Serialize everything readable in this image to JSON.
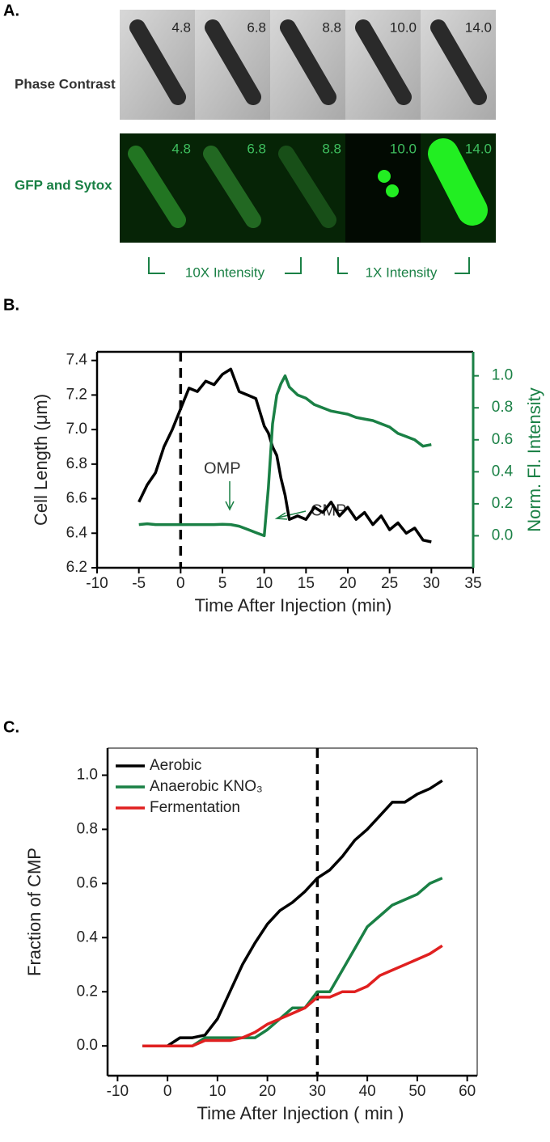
{
  "panel_a": {
    "label": "A.",
    "rows": [
      "Phase Contrast",
      "GFP and Sytox"
    ],
    "times": [
      "4.8",
      "6.8",
      "8.8",
      "10.0",
      "14.0"
    ],
    "brackets": [
      "10X Intensity",
      "1X Intensity"
    ]
  },
  "chart_data": [
    {
      "type": "line",
      "label": "B.",
      "xlabel": "Time After Injection (min)",
      "ylabel": "Cell Length (μm)",
      "y2label": "Norm. Fl. Intensity",
      "x": [
        -5,
        -4,
        -3,
        -2,
        -1,
        0,
        1,
        2,
        3,
        4,
        5,
        6,
        7,
        8,
        9,
        10,
        10.5,
        11,
        11.5,
        12,
        12.5,
        13,
        14,
        15,
        16,
        17,
        18,
        19,
        20,
        21,
        22,
        23,
        24,
        25,
        26,
        27,
        28,
        29,
        30
      ],
      "series": [
        {
          "color": "#000000",
          "values": [
            6.58,
            6.68,
            6.75,
            6.9,
            7.0,
            7.12,
            7.24,
            7.22,
            7.28,
            7.26,
            7.32,
            7.35,
            7.22,
            7.2,
            7.18,
            7.02,
            6.98,
            6.9,
            6.85,
            6.72,
            6.62,
            6.48,
            6.5,
            6.48,
            6.55,
            6.52,
            6.58,
            6.5,
            6.55,
            6.48,
            6.52,
            6.45,
            6.5,
            6.42,
            6.46,
            6.4,
            6.43,
            6.36,
            6.35
          ]
        },
        {
          "color": "#1a8045",
          "axis": "y2",
          "values": [
            0.07,
            0.075,
            0.07,
            0.07,
            0.07,
            0.07,
            0.07,
            0.07,
            0.07,
            0.07,
            0.072,
            0.07,
            0.06,
            0.04,
            0.02,
            0.0,
            0.3,
            0.7,
            0.88,
            0.95,
            1.0,
            0.93,
            0.88,
            0.86,
            0.82,
            0.8,
            0.78,
            0.77,
            0.76,
            0.74,
            0.73,
            0.72,
            0.7,
            0.68,
            0.64,
            0.62,
            0.6,
            0.56,
            0.57
          ]
        }
      ],
      "xlim": [
        -10,
        35
      ],
      "xticks": [
        -10,
        -5,
        0,
        5,
        10,
        15,
        20,
        25,
        30,
        35
      ],
      "ylim": [
        6.2,
        7.45
      ],
      "yticks": [
        6.2,
        6.4,
        6.6,
        6.8,
        {
          "value": 7,
          "label": "7.0"
        },
        7.2,
        7.4
      ],
      "y2lim": [
        -0.2,
        1.15
      ],
      "y2ticks": [
        {
          "value": 0,
          "label": "0.0"
        },
        0.2,
        0.4,
        0.6,
        0.8,
        {
          "value": 1,
          "label": "1.0"
        }
      ],
      "vline": 0,
      "annotations": [
        "OMP",
        "CMP"
      ]
    },
    {
      "type": "line",
      "label": "C.",
      "xlabel": "Time After Injection ( min )",
      "ylabel": "Fraction of CMP",
      "x": [
        -5,
        -2.5,
        0,
        2.5,
        5,
        7.5,
        10,
        12.5,
        15,
        17.5,
        20,
        22.5,
        25,
        27.5,
        30,
        32.5,
        35,
        37.5,
        40,
        42.5,
        45,
        47.5,
        50,
        52.5,
        55
      ],
      "series": [
        {
          "name": "Aerobic",
          "color": "#000000",
          "values": [
            0,
            0,
            0,
            0.03,
            0.03,
            0.04,
            0.1,
            0.2,
            0.3,
            0.38,
            0.45,
            0.5,
            0.53,
            0.57,
            0.62,
            0.65,
            0.7,
            0.76,
            0.8,
            0.85,
            0.9,
            0.9,
            0.93,
            0.95,
            0.98
          ]
        },
        {
          "name": "Anaerobic KNO₃",
          "color": "#1a8045",
          "values": [
            0,
            0,
            0,
            0,
            0,
            0.03,
            0.03,
            0.03,
            0.03,
            0.03,
            0.06,
            0.1,
            0.14,
            0.14,
            0.2,
            0.2,
            0.28,
            0.36,
            0.44,
            0.48,
            0.52,
            0.54,
            0.56,
            0.6,
            0.62
          ]
        },
        {
          "name": "Fermentation",
          "color": "#e02020",
          "values": [
            0,
            0,
            0,
            0,
            0,
            0.02,
            0.02,
            0.02,
            0.03,
            0.05,
            0.08,
            0.1,
            0.12,
            0.14,
            0.18,
            0.18,
            0.2,
            0.2,
            0.22,
            0.26,
            0.28,
            0.3,
            0.32,
            0.34,
            0.37
          ]
        }
      ],
      "xlim": [
        -12,
        62
      ],
      "xticks": [
        -10,
        0,
        10,
        20,
        30,
        40,
        50,
        60
      ],
      "ylim": [
        -0.11,
        1.1
      ],
      "yticks": [
        {
          "value": 0,
          "label": "0.0"
        },
        0.2,
        0.4,
        0.6,
        0.8,
        {
          "value": 1,
          "label": "1.0"
        }
      ],
      "vline": 30,
      "legend": "upper left"
    }
  ]
}
